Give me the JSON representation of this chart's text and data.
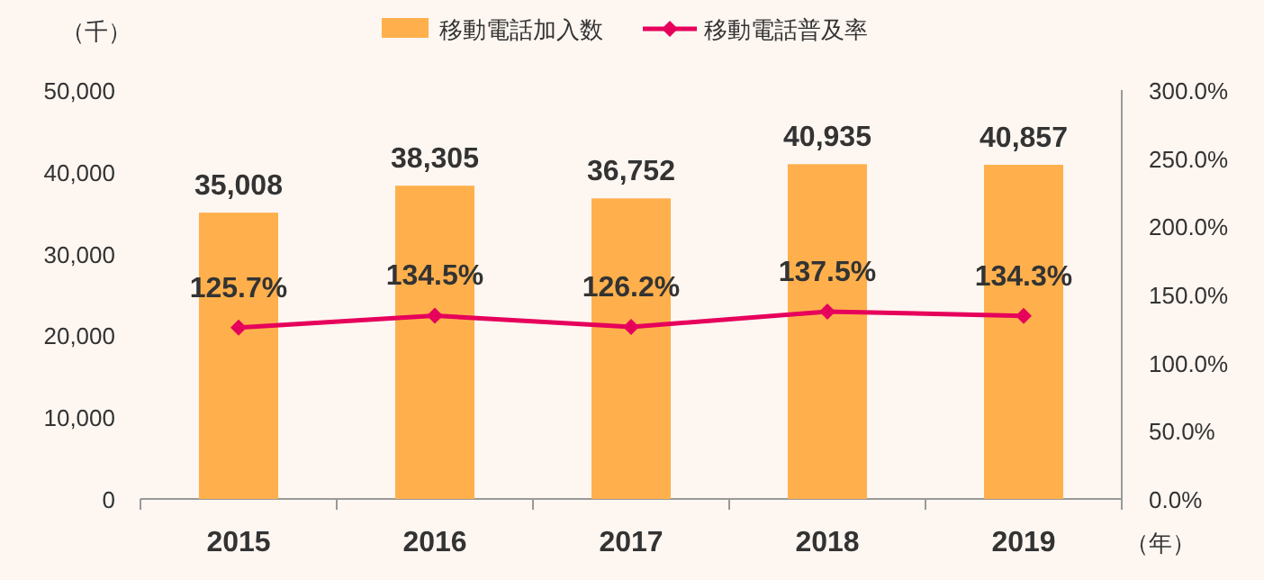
{
  "chart_data": {
    "type": "bar",
    "categories": [
      "2015",
      "2016",
      "2017",
      "2018",
      "2019"
    ],
    "series": [
      {
        "name": "移動電話加入数",
        "color": "#ffb04c",
        "values": [
          35008,
          38305,
          36752,
          40935,
          40857
        ],
        "value_labels": [
          "35,008",
          "38,305",
          "36,752",
          "40,935",
          "40,857"
        ]
      },
      {
        "name": "移動電話普及率",
        "type": "line",
        "axis": "y2",
        "color": "#e6005c",
        "marker": "diamond",
        "values": [
          125.7,
          134.5,
          126.2,
          137.5,
          134.3
        ],
        "value_labels": [
          "125.7%",
          "134.5%",
          "126.2%",
          "137.5%",
          "134.3%"
        ]
      }
    ],
    "ylabel": "（千）",
    "xlabel": "（年）",
    "ylim": [
      0,
      50000
    ],
    "yticks": [
      {
        "value": 0,
        "label": "0"
      },
      {
        "value": 10000,
        "label": "10,000"
      },
      {
        "value": 20000,
        "label": "20,000"
      },
      {
        "value": 30000,
        "label": "30,000"
      },
      {
        "value": 40000,
        "label": "40,000"
      },
      {
        "value": 50000,
        "label": "50,000"
      }
    ],
    "y2lim": [
      0,
      300
    ],
    "y2ticks": [
      {
        "value": 0,
        "label": "0.0%"
      },
      {
        "value": 50,
        "label": "50.0%"
      },
      {
        "value": 100,
        "label": "100.0%"
      },
      {
        "value": 150,
        "label": "150.0%"
      },
      {
        "value": 200,
        "label": "200.0%"
      },
      {
        "value": 250,
        "label": "250.0%"
      },
      {
        "value": 300,
        "label": "300.0%"
      }
    ],
    "legend": "top",
    "grid": false
  }
}
